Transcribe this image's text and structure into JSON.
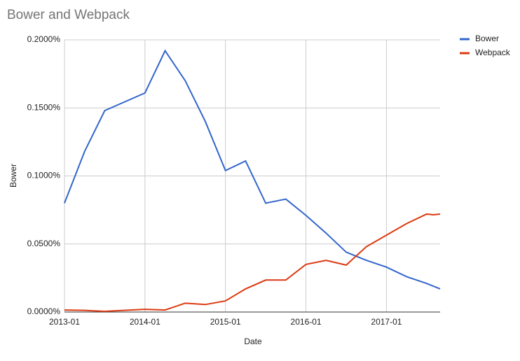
{
  "chart_data": {
    "type": "line",
    "title": "Bower and Webpack",
    "x_label": "Date",
    "y_label": "Bower",
    "x": [
      "2013-01",
      "2013-04",
      "2013-07",
      "2014-01",
      "2014-04",
      "2014-07",
      "2014-10",
      "2015-01",
      "2015-04",
      "2015-07",
      "2015-10",
      "2016-01",
      "2016-04",
      "2016-07",
      "2016-10",
      "2017-01",
      "2017-04",
      "2017-07",
      "2017-08",
      "2017-09"
    ],
    "series": [
      {
        "name": "Bower",
        "color": "#3366cc",
        "values": [
          0.08,
          0.118,
          0.148,
          0.161,
          0.192,
          0.17,
          0.14,
          0.104,
          0.111,
          0.08,
          0.083,
          0.071,
          0.058,
          0.044,
          0.038,
          0.033,
          0.026,
          0.021,
          0.019,
          0.017
        ]
      },
      {
        "name": "Webpack",
        "color": "#dc3912",
        "values": [
          0.0015,
          0.0012,
          0.0005,
          0.002,
          0.0015,
          0.0065,
          0.0055,
          0.0082,
          0.017,
          0.0235,
          0.0235,
          0.035,
          0.038,
          0.0345,
          0.048,
          0.0565,
          0.065,
          0.072,
          0.0715,
          0.072
        ]
      }
    ],
    "xlim": [
      "2013-01",
      "2017-09"
    ],
    "xticks": [
      "2013-01",
      "2014-01",
      "2015-01",
      "2016-01",
      "2017-01"
    ],
    "ylim": [
      0,
      0.2
    ],
    "yticks": [
      {
        "value": 0,
        "label": "0.0000%"
      },
      {
        "value": 0.05,
        "label": "0.0500%"
      },
      {
        "value": 0.1,
        "label": "0.1000%"
      },
      {
        "value": 0.15,
        "label": "0.1500%"
      },
      {
        "value": 0.2,
        "label": "0.2000%"
      }
    ],
    "grid": true,
    "legend": "right"
  }
}
